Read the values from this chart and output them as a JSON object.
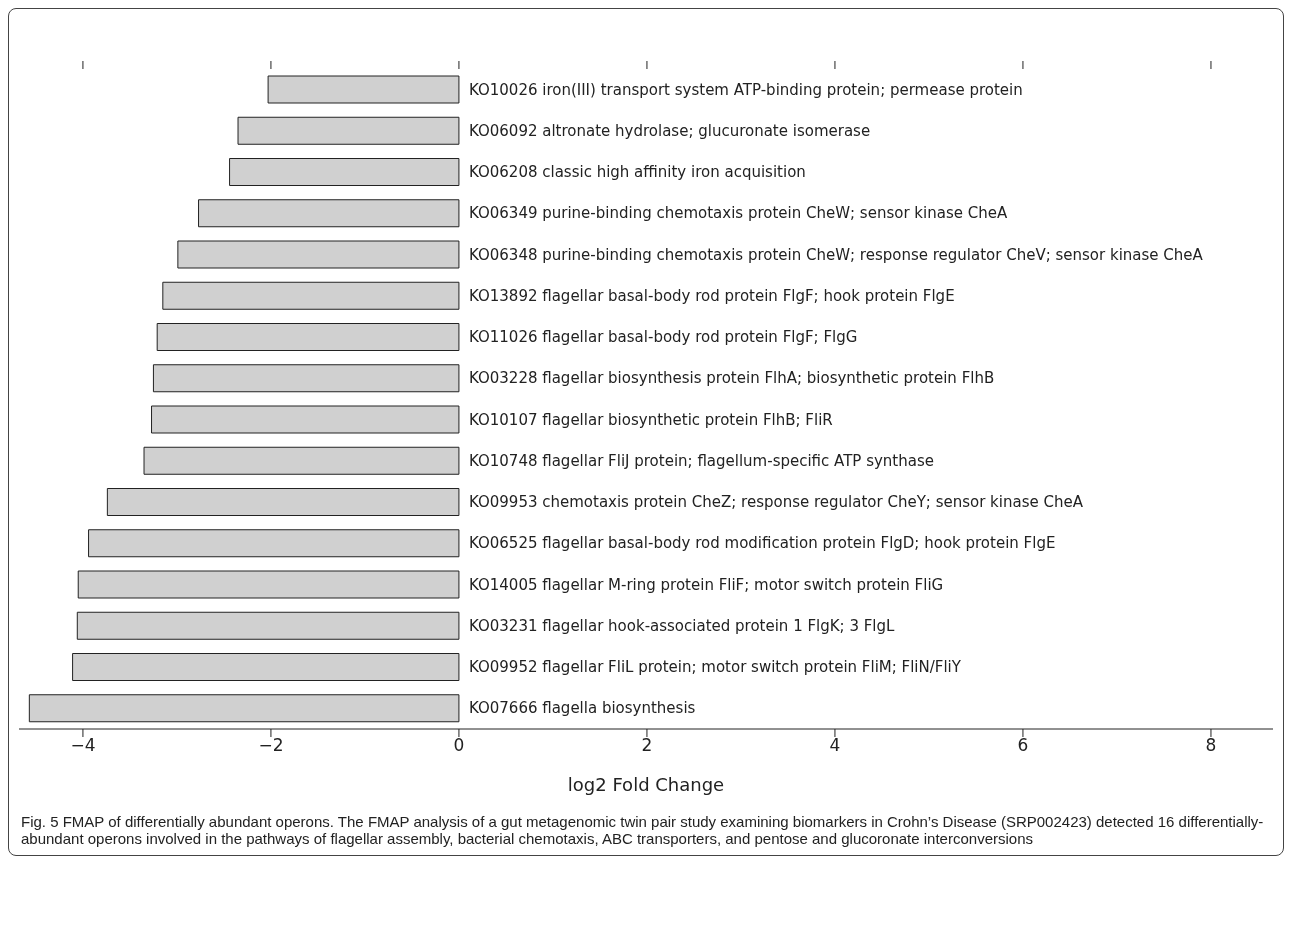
{
  "chart_data": {
    "type": "bar",
    "orientation": "horizontal",
    "xlabel": "log2 Fold Change",
    "categories": [
      "KO10026 iron(III) transport system ATP-binding protein; permease protein",
      "KO06092 altronate hydrolase; glucuronate isomerase",
      "KO06208 classic high affinity iron acquisition",
      "KO06349 purine-binding chemotaxis protein CheW; sensor kinase CheA",
      "KO06348 purine-binding chemotaxis protein CheW; response regulator CheV; sensor kinase CheA",
      "KO13892 flagellar basal-body rod protein FlgF; hook protein FlgE",
      "KO11026 flagellar basal-body rod protein FlgF; FlgG",
      "KO03228 flagellar biosynthesis protein FlhA; biosynthetic protein FlhB",
      "KO10107 flagellar biosynthetic protein FlhB; FliR",
      "KO10748 flagellar FliJ protein; flagellum-specific ATP synthase",
      "KO09953 chemotaxis protein CheZ; response regulator CheY; sensor kinase CheA",
      "KO06525 flagellar basal-body rod modification protein FlgD; hook protein FlgE",
      "KO14005 flagellar M-ring protein FliF; motor switch protein FliG",
      "KO03231 flagellar hook-associated protein 1 FlgK; 3 FlgL",
      "KO09952 flagellar FliL protein; motor switch protein FliM; FliN/FliY",
      "KO07666 flagella biosynthesis"
    ],
    "values": [
      -2.03,
      -2.35,
      -2.44,
      -2.77,
      -2.99,
      -3.15,
      -3.21,
      -3.25,
      -3.27,
      -3.35,
      -3.74,
      -3.94,
      -4.05,
      -4.06,
      -4.11,
      -4.57
    ],
    "color": "#d0d0d0",
    "xlim": [
      -4.68,
      8.66
    ],
    "xticks": [
      -4,
      -2,
      0,
      2,
      4,
      6,
      8
    ],
    "grid": false,
    "annotations": [
      "Fig. 5 FMAP of differentially abundant operons. The FMAP analysis of a gut metagenomic twin pair study examining biomarkers in Crohn’s Disease (SRP002423) detected 16 differentially-abundant operons involved in the pathways of flagellar assembly, bacterial chemotaxis, ABC transporters, and pentose and glucoronate interconversions"
    ]
  }
}
